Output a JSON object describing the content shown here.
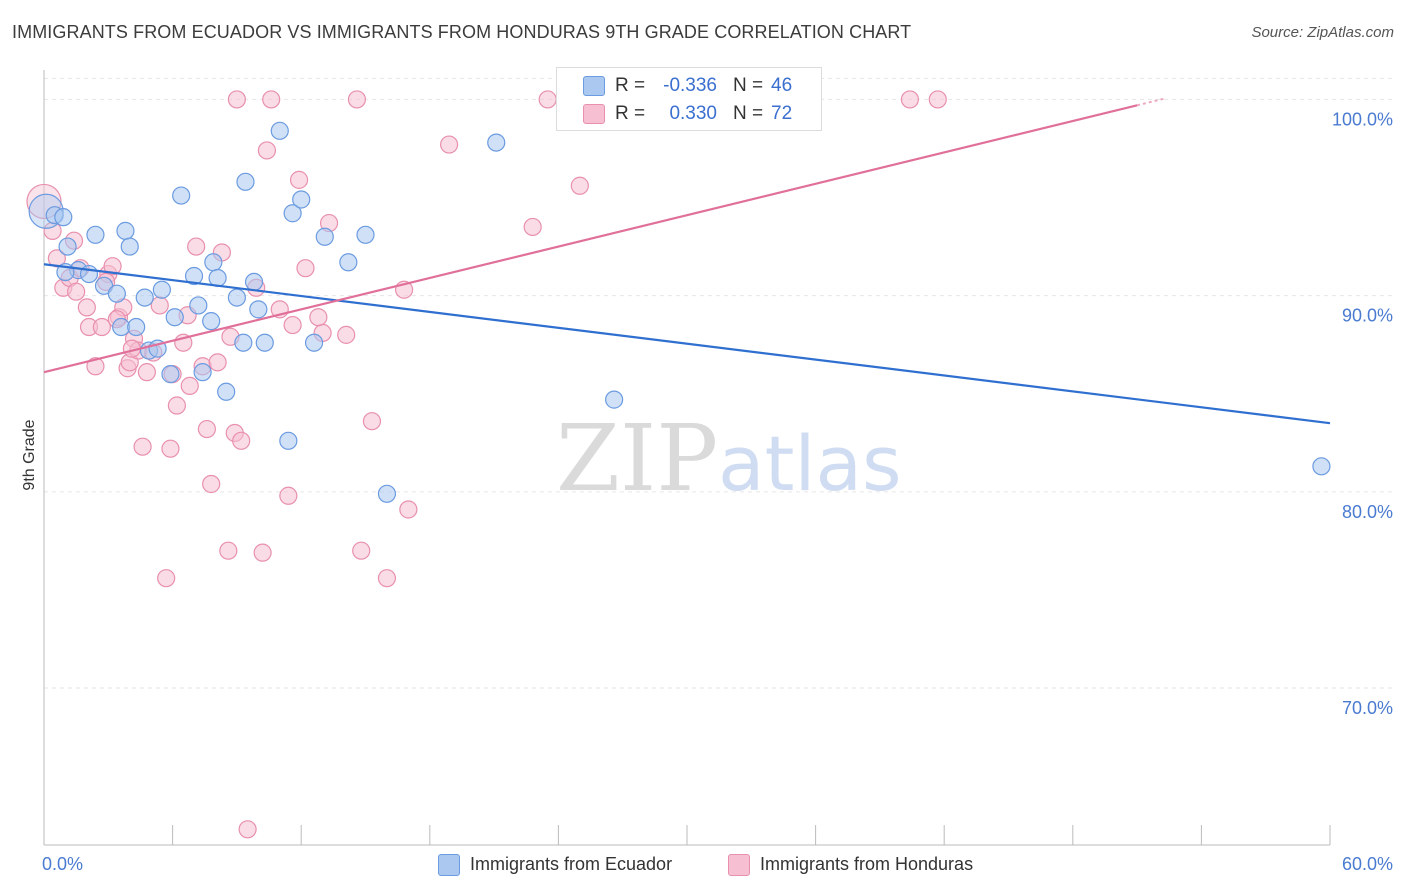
{
  "header": {
    "title": "IMMIGRANTS FROM ECUADOR VS IMMIGRANTS FROM HONDURAS 9TH GRADE CORRELATION CHART",
    "source": "Source: ZipAtlas.com"
  },
  "watermark": {
    "zip": "ZIP",
    "atlas": "atlas"
  },
  "legend_top": {
    "r_label": "R =",
    "n_label": "N =",
    "rows": [
      {
        "r": "-0.336",
        "n": "46"
      },
      {
        "r": "0.330",
        "n": "72"
      }
    ]
  },
  "colors": {
    "ecuador_fill": "#aac8f0",
    "ecuador_stroke": "#6b9be0",
    "ecuador_line": "#2f6fd0",
    "honduras_fill": "#f6c0d2",
    "honduras_stroke": "#e890ae",
    "honduras_line": "#e0709a",
    "tick_label": "#4a7bd0"
  },
  "chart_data": {
    "type": "scatter",
    "title": "IMMIGRANTS FROM ECUADOR VS IMMIGRANTS FROM HONDURAS 9TH GRADE CORRELATION CHART",
    "xlabel": "",
    "ylabel": "9th Grade",
    "xlim": [
      0,
      60
    ],
    "ylim": [
      62,
      101.5
    ],
    "x_ticks": [
      0,
      6,
      12,
      18,
      24,
      30,
      36,
      42,
      48,
      54,
      60
    ],
    "x_tick_labels": {
      "0": "0.0%",
      "60": "60.0%"
    },
    "y_ticks": [
      70,
      80,
      90,
      100
    ],
    "y_tick_labels": [
      "70.0%",
      "80.0%",
      "90.0%",
      "100.0%"
    ],
    "grid": true,
    "legend_position": "bottom",
    "series": [
      {
        "name": "Immigrants from Ecuador",
        "r": -0.336,
        "n": 46,
        "trend": {
          "x": [
            0,
            60
          ],
          "y": [
            91.6,
            83.5
          ]
        },
        "points": [
          [
            0.1,
            94.3
          ],
          [
            0.5,
            94.1
          ],
          [
            0.9,
            94.0
          ],
          [
            1.1,
            92.5
          ],
          [
            1.6,
            91.3
          ],
          [
            2.1,
            91.1
          ],
          [
            2.4,
            93.1
          ],
          [
            2.8,
            90.5
          ],
          [
            3.4,
            90.1
          ],
          [
            3.8,
            93.3
          ],
          [
            4.0,
            92.5
          ],
          [
            4.7,
            89.9
          ],
          [
            5.5,
            90.3
          ],
          [
            6.1,
            88.9
          ],
          [
            6.4,
            95.1
          ],
          [
            7.0,
            91.0
          ],
          [
            7.2,
            89.5
          ],
          [
            7.9,
            91.7
          ],
          [
            8.1,
            90.9
          ],
          [
            9.0,
            89.9
          ],
          [
            9.4,
            95.8
          ],
          [
            9.8,
            90.7
          ],
          [
            10.0,
            89.3
          ],
          [
            11.0,
            98.4
          ],
          [
            11.6,
            94.2
          ],
          [
            12.0,
            94.9
          ],
          [
            12.6,
            87.6
          ],
          [
            13.1,
            93.0
          ],
          [
            14.2,
            91.7
          ],
          [
            15.0,
            93.1
          ],
          [
            3.6,
            88.4
          ],
          [
            4.3,
            88.4
          ],
          [
            4.9,
            87.2
          ],
          [
            5.3,
            87.3
          ],
          [
            7.4,
            86.1
          ],
          [
            7.8,
            88.7
          ],
          [
            8.5,
            85.1
          ],
          [
            9.3,
            87.6
          ],
          [
            11.4,
            82.6
          ],
          [
            16.0,
            79.9
          ],
          [
            21.1,
            97.8
          ],
          [
            26.6,
            84.7
          ],
          [
            59.6,
            81.3
          ],
          [
            1.0,
            91.2
          ],
          [
            5.9,
            86.0
          ],
          [
            10.3,
            87.6
          ]
        ]
      },
      {
        "name": "Immigrants from Honduras",
        "r": 0.33,
        "n": 72,
        "trend": {
          "x": [
            0,
            51
          ],
          "y": [
            86.1,
            99.7
          ]
        },
        "points": [
          [
            0.0,
            94.8
          ],
          [
            0.4,
            93.3
          ],
          [
            0.6,
            91.9
          ],
          [
            0.9,
            90.4
          ],
          [
            1.2,
            90.9
          ],
          [
            1.5,
            90.2
          ],
          [
            1.7,
            91.4
          ],
          [
            2.0,
            89.4
          ],
          [
            2.1,
            88.4
          ],
          [
            2.4,
            86.4
          ],
          [
            2.7,
            88.4
          ],
          [
            3.0,
            91.1
          ],
          [
            3.2,
            91.5
          ],
          [
            3.5,
            88.9
          ],
          [
            3.7,
            89.4
          ],
          [
            3.9,
            86.3
          ],
          [
            4.0,
            86.6
          ],
          [
            4.2,
            87.8
          ],
          [
            4.4,
            87.2
          ],
          [
            4.6,
            82.3
          ],
          [
            4.8,
            86.1
          ],
          [
            5.1,
            87.1
          ],
          [
            5.4,
            89.5
          ],
          [
            5.7,
            75.6
          ],
          [
            5.9,
            82.2
          ],
          [
            6.2,
            84.4
          ],
          [
            6.5,
            87.6
          ],
          [
            6.8,
            85.4
          ],
          [
            7.1,
            92.5
          ],
          [
            7.4,
            86.4
          ],
          [
            7.6,
            83.2
          ],
          [
            7.8,
            80.4
          ],
          [
            8.1,
            86.6
          ],
          [
            8.3,
            92.2
          ],
          [
            8.6,
            77.0
          ],
          [
            8.9,
            83.0
          ],
          [
            9.2,
            82.6
          ],
          [
            9.5,
            62.8
          ],
          [
            9.9,
            90.4
          ],
          [
            10.2,
            76.9
          ],
          [
            10.4,
            97.4
          ],
          [
            10.6,
            100.0
          ],
          [
            11.0,
            89.3
          ],
          [
            11.4,
            79.8
          ],
          [
            11.6,
            88.5
          ],
          [
            11.9,
            95.9
          ],
          [
            12.2,
            91.4
          ],
          [
            13.0,
            88.1
          ],
          [
            13.3,
            93.7
          ],
          [
            14.1,
            88.0
          ],
          [
            14.6,
            100.0
          ],
          [
            14.8,
            77.0
          ],
          [
            15.3,
            83.6
          ],
          [
            16.0,
            75.6
          ],
          [
            16.8,
            90.3
          ],
          [
            17.0,
            79.1
          ],
          [
            18.9,
            97.7
          ],
          [
            22.8,
            93.5
          ],
          [
            23.5,
            100.0
          ],
          [
            25.0,
            95.6
          ],
          [
            26.4,
            100.0
          ],
          [
            40.4,
            100.0
          ],
          [
            41.7,
            100.0
          ],
          [
            9.0,
            100.0
          ],
          [
            6.7,
            89.0
          ],
          [
            12.8,
            88.9
          ],
          [
            4.1,
            87.3
          ],
          [
            2.9,
            90.7
          ],
          [
            6.0,
            86.0
          ],
          [
            8.7,
            87.9
          ],
          [
            3.4,
            88.8
          ],
          [
            1.4,
            92.8
          ]
        ]
      }
    ]
  }
}
